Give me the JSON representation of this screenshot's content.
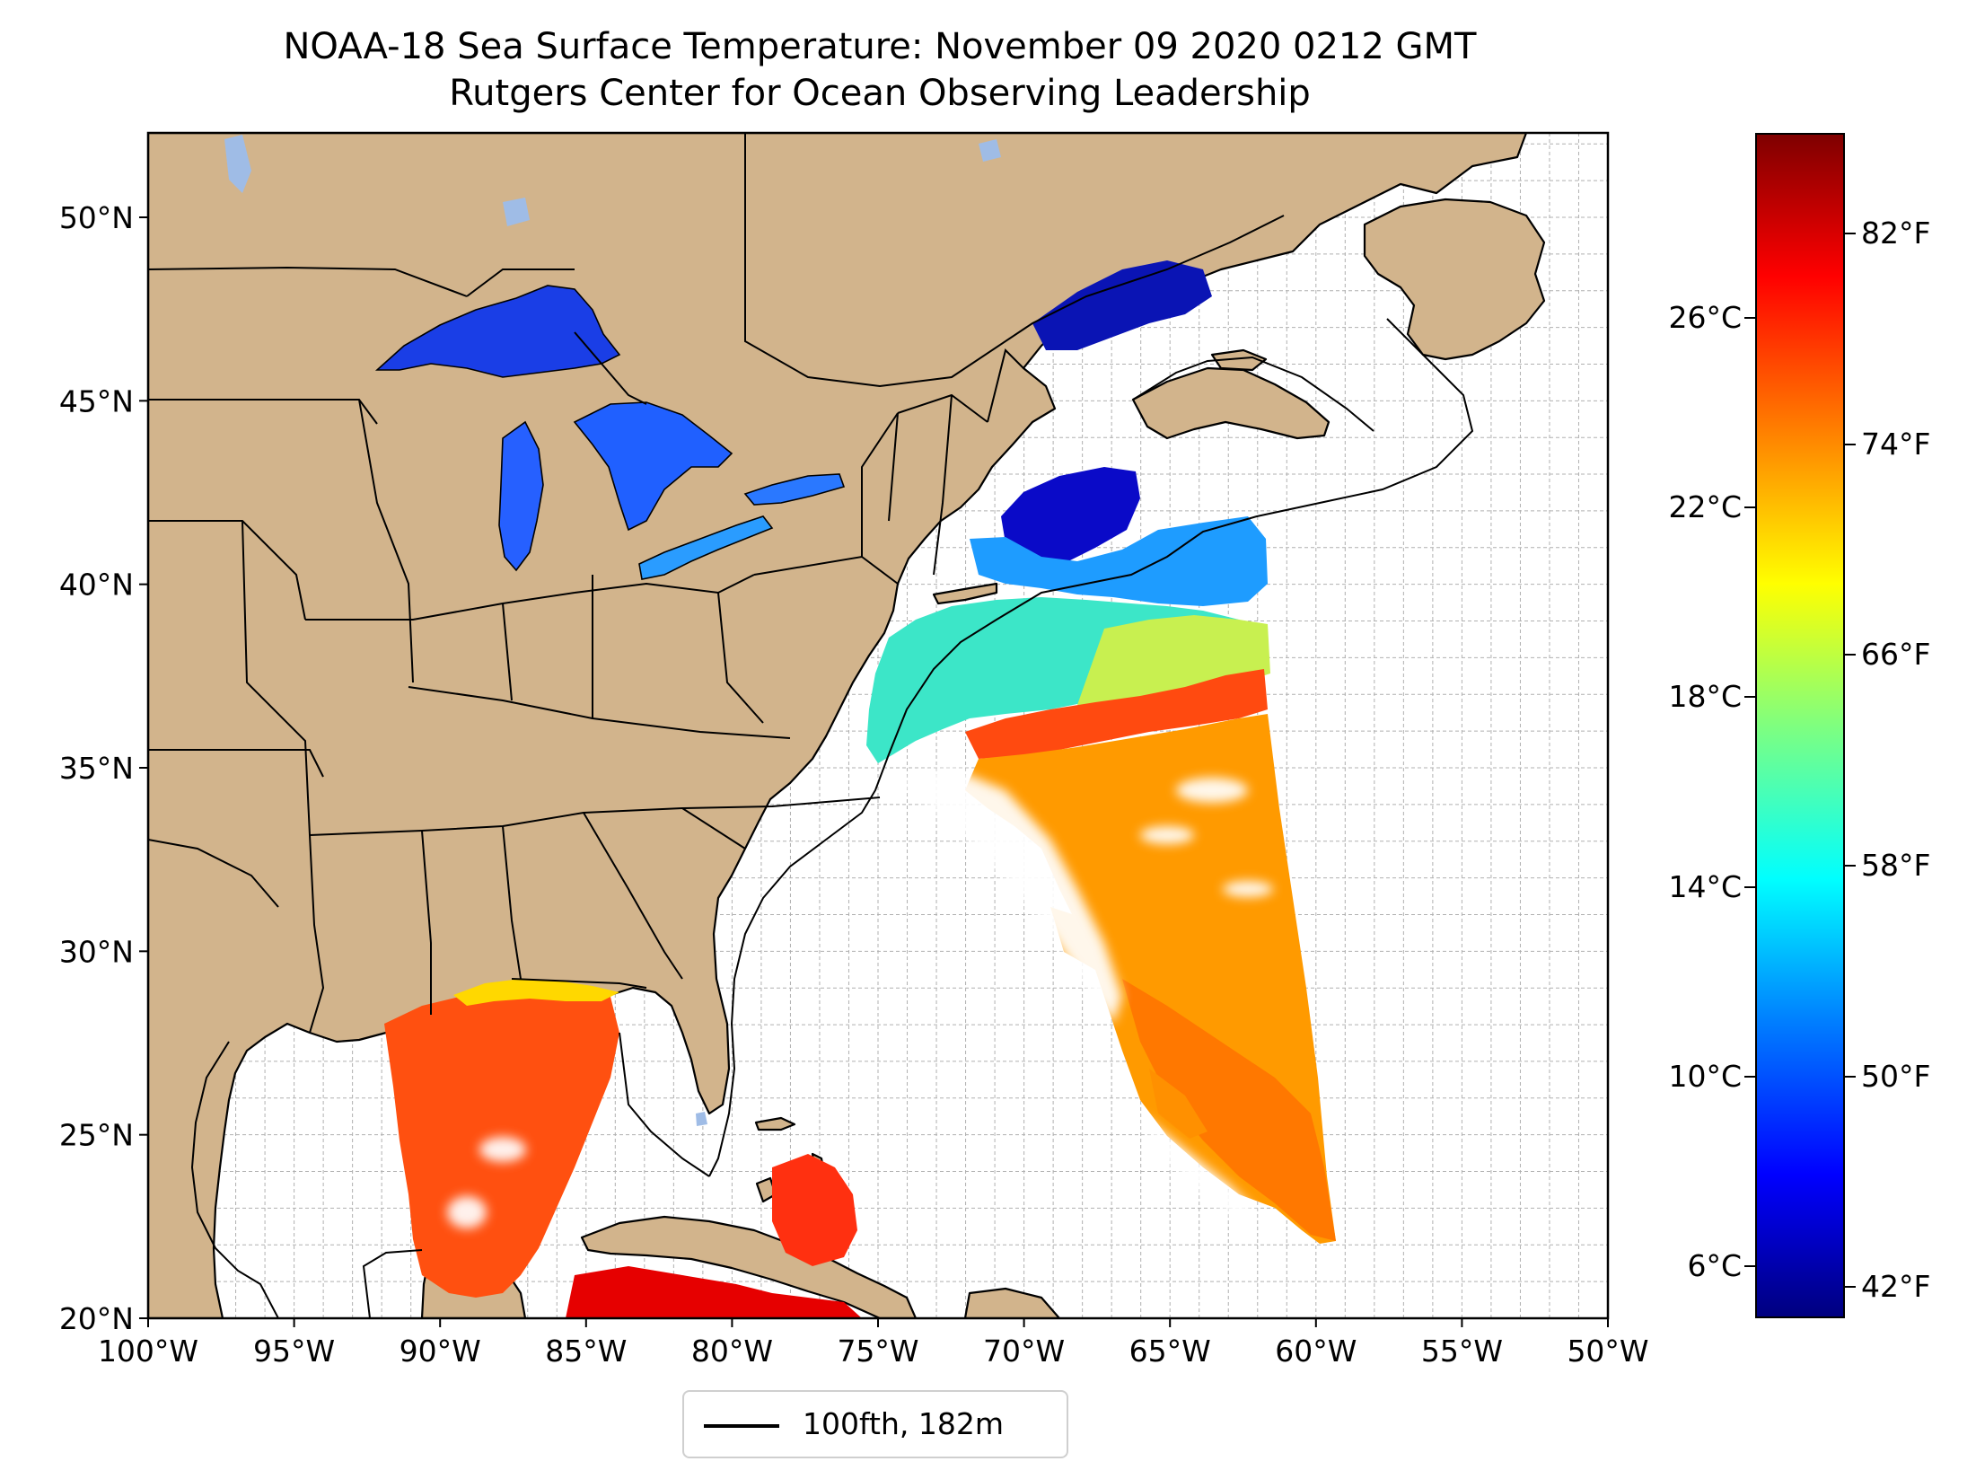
{
  "title": "NOAA-18 Sea Surface Temperature: November 09 2020 0212 GMT",
  "subtitle": "Rutgers Center for Ocean Observing Leadership",
  "map": {
    "lon_range": [
      -100,
      -50
    ],
    "lat_range": [
      20,
      52.3
    ],
    "lon_ticks": [
      "100°W",
      "95°W",
      "90°W",
      "85°W",
      "80°W",
      "75°W",
      "70°W",
      "65°W",
      "60°W",
      "55°W",
      "50°W"
    ],
    "lat_ticks": [
      "20°N",
      "25°N",
      "30°N",
      "35°N",
      "40°N",
      "45°N",
      "50°N"
    ],
    "gridlines": "dashed, every 1 degree",
    "land_color": "#d2b48c",
    "lake_color": "#9fbce6",
    "coastline_color": "#000000"
  },
  "legend": {
    "placement": "below map, centered",
    "label": "100fth, 182m",
    "line_color": "#000000"
  },
  "colorbar": {
    "colormap": "jet",
    "range_celsius": [
      4.9,
      29.9
    ],
    "celsius_ticks": [
      "6°C",
      "10°C",
      "14°C",
      "18°C",
      "22°C",
      "26°C"
    ],
    "fahrenheit_ticks": [
      "42°F",
      "50°F",
      "58°F",
      "66°F",
      "74°F",
      "82°F"
    ]
  }
}
